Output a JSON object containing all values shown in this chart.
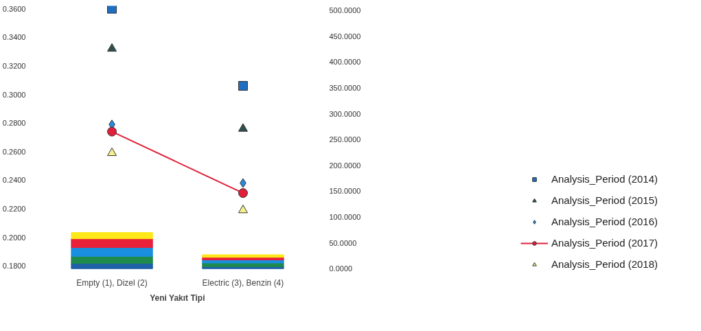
{
  "chart_data": {
    "type": "bar",
    "stacked": true,
    "xlabel": "Yeni Yakıt Tipi",
    "categories": [
      "Empty (1), Dizel (2)",
      "Electric (3), Benzin (4)"
    ],
    "ylim": [
      0.177,
      0.362
    ],
    "yticks": [
      {
        "value": 0.18,
        "label": "0.1800"
      },
      {
        "value": 0.2,
        "label": "0.2000"
      },
      {
        "value": 0.22,
        "label": "0.2200"
      },
      {
        "value": 0.24,
        "label": "0.2400"
      },
      {
        "value": 0.26,
        "label": "0.2600"
      },
      {
        "value": 0.28,
        "label": "0.2800"
      },
      {
        "value": 0.3,
        "label": "0.3000"
      },
      {
        "value": 0.32,
        "label": "0.3200"
      },
      {
        "value": 0.34,
        "label": "0.3400"
      },
      {
        "value": 0.36,
        "label": "0.3600"
      }
    ],
    "y2lim": [
      -3,
      509
    ],
    "y2ticks": [
      {
        "value": 0,
        "label": "0.0000"
      },
      {
        "value": 50,
        "label": "50.0000"
      },
      {
        "value": 100,
        "label": "100.0000"
      },
      {
        "value": 150,
        "label": "150.0000"
      },
      {
        "value": 200,
        "label": "200.0000"
      },
      {
        "value": 250,
        "label": "250.0000"
      },
      {
        "value": 300,
        "label": "300.0000"
      },
      {
        "value": 350,
        "label": "350.0000"
      },
      {
        "value": 400,
        "label": "400.0000"
      },
      {
        "value": 450,
        "label": "450.0000"
      },
      {
        "value": 500,
        "label": "500.0000"
      }
    ],
    "legend": "right",
    "grid": false,
    "series": [
      {
        "axis": "y2",
        "color": "#1f5fa8",
        "values": [
          10,
          4
        ]
      },
      {
        "axis": "y2",
        "color": "#1e8a4c",
        "values": [
          14,
          7
        ]
      },
      {
        "axis": "y2",
        "color": "#1a8fe0",
        "values": [
          17,
          6
        ]
      },
      {
        "axis": "y2",
        "color": "#e8203a",
        "values": [
          17,
          5
        ]
      },
      {
        "axis": "y2",
        "color": "#ffe81a",
        "values": [
          12,
          5
        ]
      },
      {
        "type": "scatter",
        "name": "Analysis_Period (2014)",
        "color": "#1f6fc0",
        "marker": "square",
        "values": [
          0.36,
          0.306
        ]
      },
      {
        "type": "scatter",
        "name": "Analysis_Period (2015)",
        "color": "#2f4f4f",
        "marker": "triangle",
        "values": [
          0.332,
          0.276
        ]
      },
      {
        "type": "scatter",
        "name": "Analysis_Period (2016)",
        "color": "#2a8ad8",
        "marker": "diamond",
        "values": [
          0.279,
          0.238
        ]
      },
      {
        "type": "line",
        "name": "Analysis_Period (2017)",
        "color": "#e0203a",
        "marker": "circle",
        "values": [
          0.274,
          0.231
        ]
      },
      {
        "type": "scatter",
        "name": "Analysis_Period (2018)",
        "color": "#f5f08a",
        "marker": "triangle",
        "values": [
          0.259,
          0.219
        ]
      }
    ]
  }
}
